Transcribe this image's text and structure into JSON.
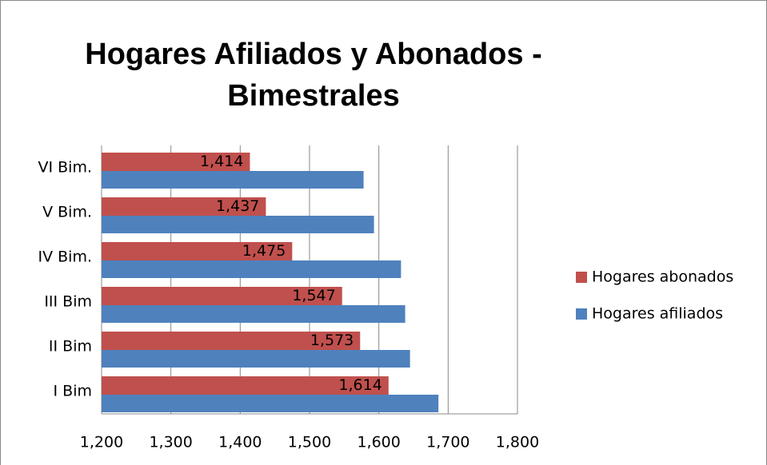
{
  "chart_data": {
    "type": "bar",
    "orientation": "horizontal",
    "title": [
      "Hogares Afiliados y Abonados -",
      "Bimestrales"
    ],
    "categories": [
      "I Bim",
      "II Bim",
      "III Bim",
      "IV Bim.",
      "V Bim.",
      "VI Bim."
    ],
    "series": [
      {
        "name": "Hogares abonados",
        "color": "#c0504d",
        "values": [
          1614,
          1573,
          1547,
          1475,
          1437,
          1414
        ],
        "value_labels": [
          "1,614",
          "1,573",
          "1,547",
          "1,475",
          "1,437",
          "1,414"
        ]
      },
      {
        "name": "Hogares afiliados",
        "color": "#4f81bd",
        "values": [
          1686,
          1645,
          1638,
          1632,
          1593,
          1578
        ]
      }
    ],
    "xlim": [
      1200,
      1800
    ],
    "xticks": [
      {
        "value": 1200,
        "label": "1,200"
      },
      {
        "value": 1300,
        "label": "1,300"
      },
      {
        "value": 1400,
        "label": "1,400"
      },
      {
        "value": 1500,
        "label": "1,500"
      },
      {
        "value": 1600,
        "label": "1,600"
      },
      {
        "value": 1700,
        "label": "1,700"
      },
      {
        "value": 1800,
        "label": "1,800"
      }
    ],
    "grid": true,
    "legend": "right"
  }
}
